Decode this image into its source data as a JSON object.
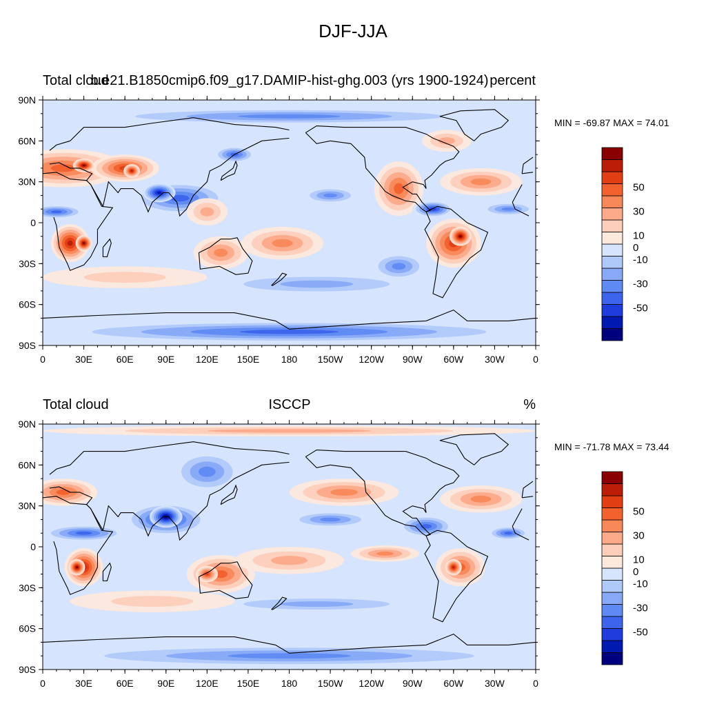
{
  "title": "DJF-JJA",
  "colors": [
    "#00007f",
    "#0019b0",
    "#1f3ddc",
    "#3c64ec",
    "#5f8af3",
    "#87a9f7",
    "#b0c9fb",
    "#d6e4fd",
    "#fde8dc",
    "#fdcfba",
    "#fcaa89",
    "#f98858",
    "#f2612e",
    "#e23e14",
    "#bb1d06",
    "#8a0000"
  ],
  "colorbar_labels": [
    "50",
    "30",
    "10",
    "0",
    "-10",
    "-30",
    "-50"
  ],
  "x_ticks": [
    "0",
    "30E",
    "60E",
    "90E",
    "120E",
    "150E",
    "180",
    "150W",
    "120W",
    "90W",
    "60W",
    "30W",
    "0"
  ],
  "y_ticks": [
    "90N",
    "60N",
    "30N",
    "0",
    "30S",
    "60S",
    "90S"
  ],
  "panels": [
    {
      "left_label": "Total cloud",
      "center_label": "b.e21.B1850cmip6.f09_g17.DAMIP-hist-ghg.003 (yrs 1900-1924)",
      "right_label": "percent",
      "min_max": "MIN = -69.87 MAX =  74.01"
    },
    {
      "left_label": "Total cloud",
      "center_label": "ISCCP",
      "right_label": "%",
      "min_max": "MIN = -71.78 MAX =  73.44"
    }
  ]
}
